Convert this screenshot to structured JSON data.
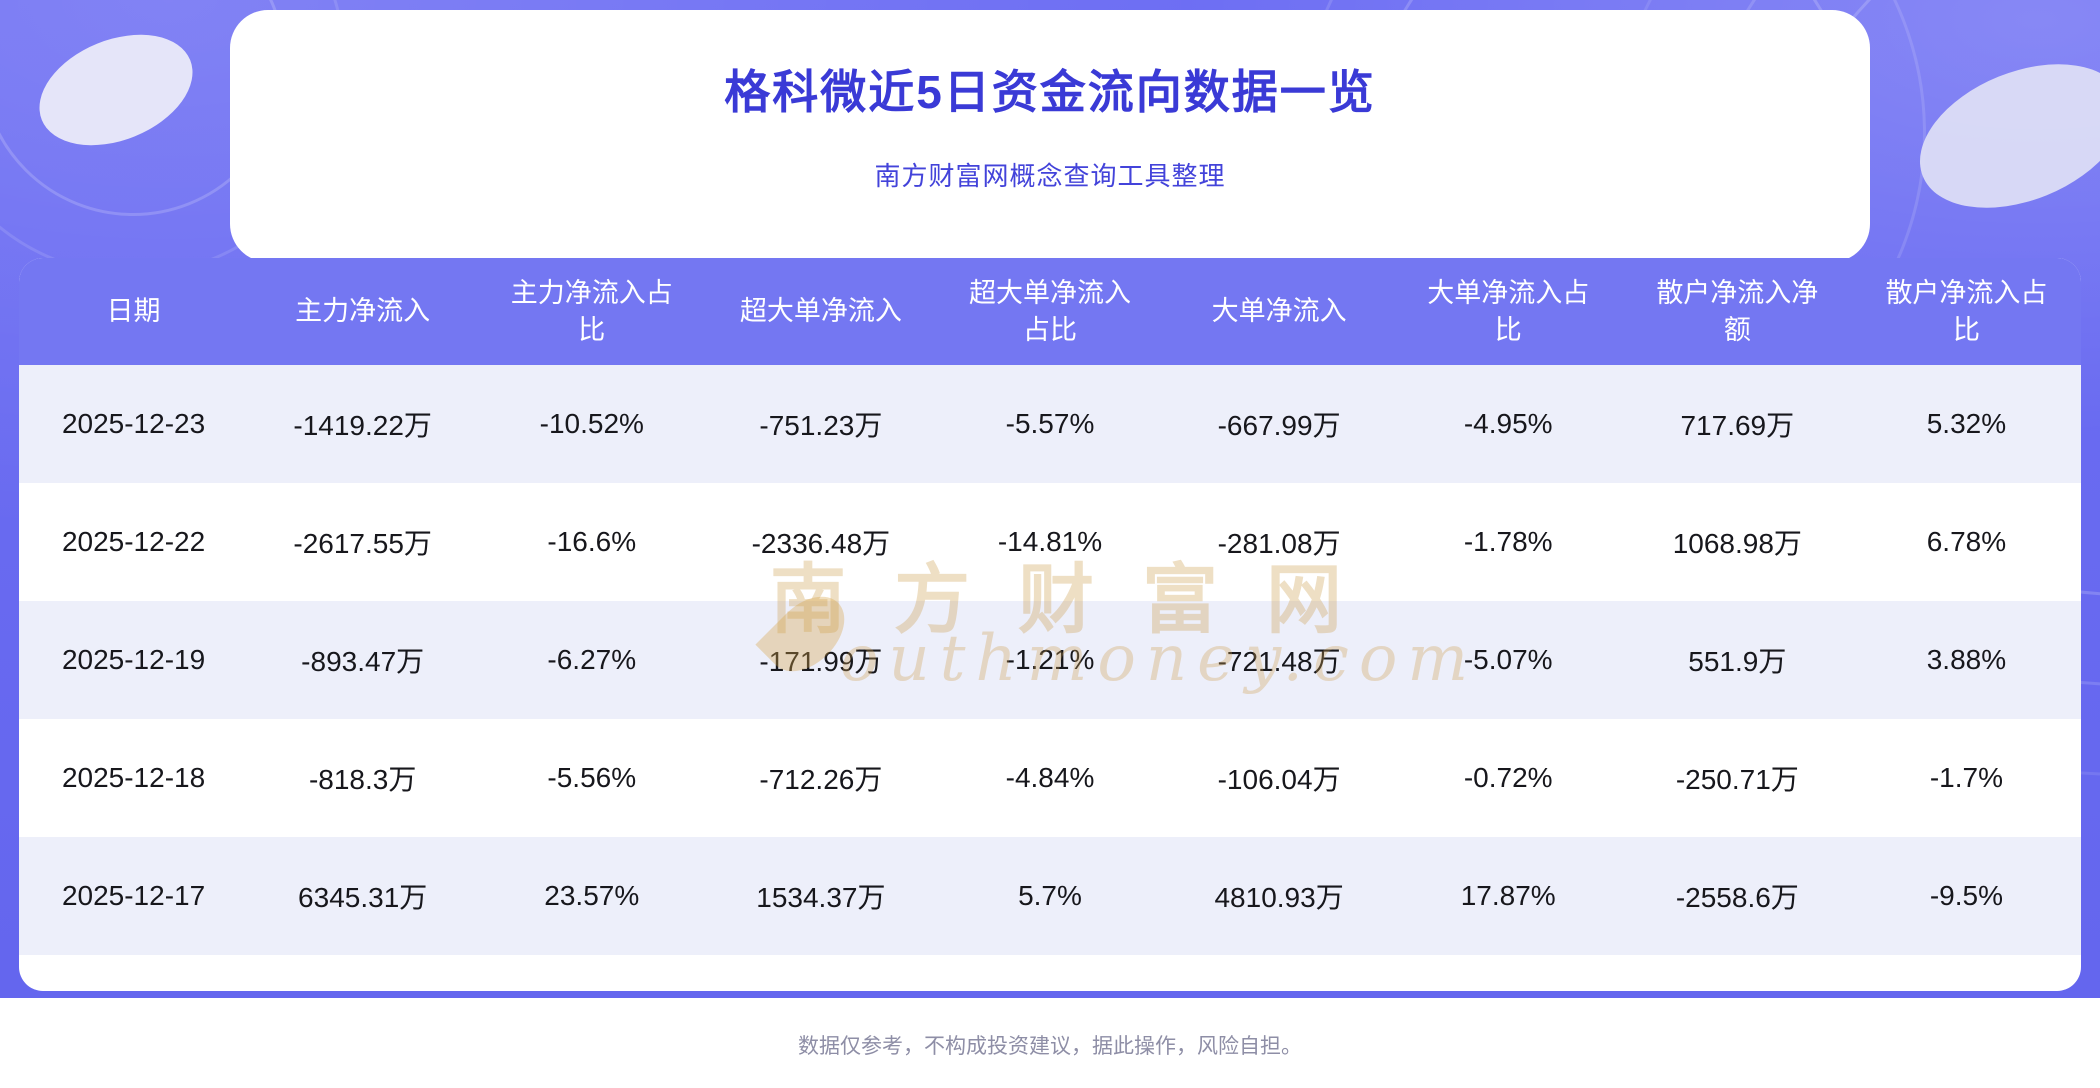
{
  "page": {
    "title": "格科微近5日资金流向数据一览",
    "subtitle": "南方财富网概念查询工具整理",
    "footer": "数据仅参考，不构成投资建议，据此操作，风险自担。",
    "watermark_cn": "南方财富网",
    "watermark_en": "outhmoney.com"
  },
  "colors": {
    "background_purple": "#6B6CEF",
    "header_purple": "#7477F2",
    "row_alt_lavender": "#EDEFFA",
    "title_blue": "#3A3AD6",
    "watermark_gold": "#CCA052",
    "footer_gray": "#8E8EA6"
  },
  "chart_data": {
    "type": "table",
    "title": "格科微近5日资金流向数据一览",
    "columns": [
      "日期",
      "主力净流入",
      "主力净流入占比",
      "超大单净流入",
      "超大单净流入占比",
      "大单净流入",
      "大单净流入占比",
      "散户净流入净额",
      "散户净流入占比"
    ],
    "rows": [
      [
        "2025-12-23",
        "-1419.22万",
        "-10.52%",
        "-751.23万",
        "-5.57%",
        "-667.99万",
        "-4.95%",
        "717.69万",
        "5.32%"
      ],
      [
        "2025-12-22",
        "-2617.55万",
        "-16.6%",
        "-2336.48万",
        "-14.81%",
        "-281.08万",
        "-1.78%",
        "1068.98万",
        "6.78%"
      ],
      [
        "2025-12-19",
        "-893.47万",
        "-6.27%",
        "-171.99万",
        "-1.21%",
        "-721.48万",
        "-5.07%",
        "551.9万",
        "3.88%"
      ],
      [
        "2025-12-18",
        "-818.3万",
        "-5.56%",
        "-712.26万",
        "-4.84%",
        "-106.04万",
        "-0.72%",
        "-250.71万",
        "-1.7%"
      ],
      [
        "2025-12-17",
        "6345.31万",
        "23.57%",
        "1534.37万",
        "5.7%",
        "4810.93万",
        "17.87%",
        "-2558.6万",
        "-9.5%"
      ]
    ]
  }
}
